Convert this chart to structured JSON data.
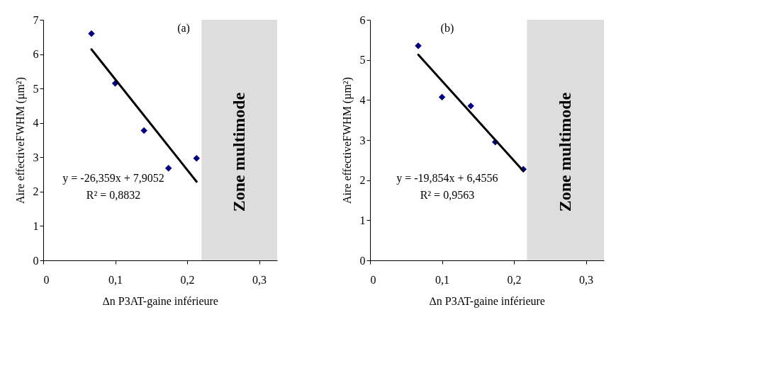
{
  "chart_data": [
    {
      "type": "scatter",
      "xlabel": "∆n P3AT-gaine inférieure",
      "ylabel": "Aire effectiveFWHM (µm²)",
      "grid": false,
      "xlim": [
        0,
        0.325
      ],
      "xticks": [
        {
          "value": 0,
          "label": "0"
        },
        {
          "value": 0.1,
          "label": "0,1"
        },
        {
          "value": 0.2,
          "label": "0,2"
        },
        {
          "value": 0.3,
          "label": "0,3"
        }
      ],
      "ylim": [
        0,
        7
      ],
      "yticks": [
        0,
        1,
        2,
        3,
        4,
        5,
        6,
        7
      ],
      "series": [
        {
          "marker": "diamond",
          "color": "#000080",
          "x": [
            0.067,
            0.1,
            0.14,
            0.174,
            0.213
          ],
          "values": [
            6.6,
            5.15,
            3.78,
            2.68,
            2.97
          ]
        },
        {
          "type": "line",
          "color": "#000000",
          "x": [
            0.067,
            0.213
          ],
          "values": [
            6.14,
            2.29
          ]
        }
      ],
      "bands": [
        {
          "axis": "x",
          "from": 0.22,
          "to": 0.325,
          "label": "Zone  multimode",
          "color": "#dddddd"
        }
      ],
      "annotations": [
        "(a)",
        "y = -26,359x + 7,9052",
        "R² = 0,8832"
      ]
    },
    {
      "type": "scatter",
      "xlabel": "∆n P3AT-gaine inférieure",
      "ylabel": "Aire effectiveFWHM (µm²)",
      "grid": false,
      "xlim": [
        0,
        0.325
      ],
      "xticks": [
        {
          "value": 0,
          "label": "0"
        },
        {
          "value": 0.1,
          "label": "0,1"
        },
        {
          "value": 0.2,
          "label": "0,2"
        },
        {
          "value": 0.3,
          "label": "0,3"
        }
      ],
      "ylim": [
        0,
        6
      ],
      "yticks": [
        0,
        1,
        2,
        3,
        4,
        5,
        6
      ],
      "series": [
        {
          "marker": "diamond",
          "color": "#000080",
          "x": [
            0.067,
            0.1,
            0.14,
            0.174,
            0.213
          ],
          "values": [
            5.35,
            4.07,
            3.85,
            2.95,
            2.27
          ]
        },
        {
          "type": "line",
          "color": "#000000",
          "x": [
            0.067,
            0.213
          ],
          "values": [
            5.13,
            2.23
          ]
        }
      ],
      "bands": [
        {
          "axis": "x",
          "from": 0.218,
          "to": 0.325,
          "label": "Zone  multimode",
          "color": "#dddddd"
        }
      ],
      "annotations": [
        "(b)",
        "y = -19,854x + 6,4556",
        "R² = 0,9563"
      ]
    }
  ]
}
